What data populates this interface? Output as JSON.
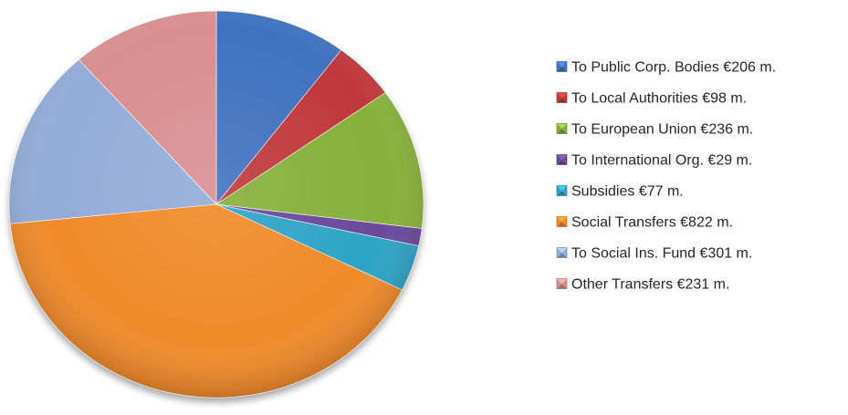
{
  "chart_data": {
    "type": "pie",
    "title": "",
    "legend_position": "right",
    "unit": "€ m.",
    "slices": [
      {
        "label": "To Public Corp. Bodies €206 m.",
        "value": 206,
        "color": "#3f72bf"
      },
      {
        "label": "To Local Authorities €98 m.",
        "value": 98,
        "color": "#c0383a"
      },
      {
        "label": "To European Union €236 m.",
        "value": 236,
        "color": "#86b03b"
      },
      {
        "label": "To International Org. €29 m.",
        "value": 29,
        "color": "#6a4a9c"
      },
      {
        "label": "Subsidies €77 m.",
        "value": 77,
        "color": "#2ea4c5"
      },
      {
        "label": "Social Transfers €822 m.",
        "value": 822,
        "color": "#f08a2a"
      },
      {
        "label": "To Social Ins. Fund €301 m.",
        "value": 301,
        "color": "#93acd8"
      },
      {
        "label": "Other Transfers €231 m.",
        "value": 231,
        "color": "#d88f91"
      }
    ]
  }
}
